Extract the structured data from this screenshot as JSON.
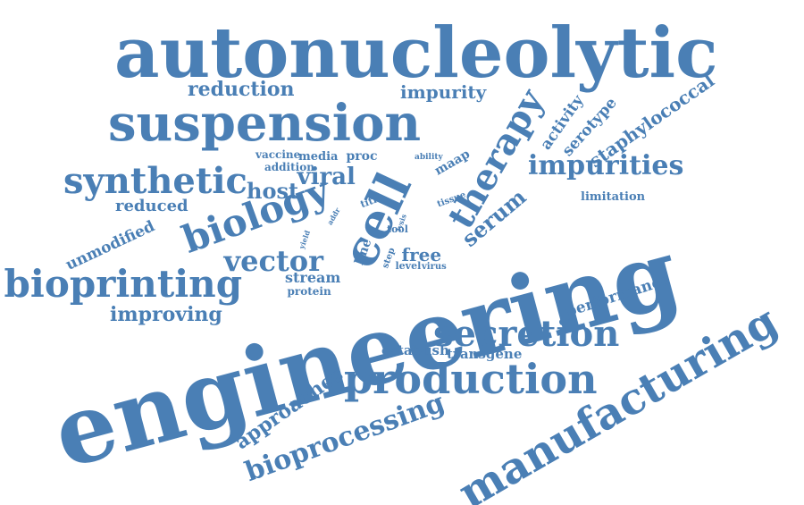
{
  "word_color": "#4a7fb5",
  "words": [
    {
      "text": "autonucleolytic"
    },
    {
      "text": "suspension"
    },
    {
      "text": "reduction"
    },
    {
      "text": "impurity"
    },
    {
      "text": "therapy"
    },
    {
      "text": "activity"
    },
    {
      "text": "serotype"
    },
    {
      "text": "staphylococcal"
    },
    {
      "text": "impurities"
    },
    {
      "text": "synthetic"
    },
    {
      "text": "vaccine"
    },
    {
      "text": "media"
    },
    {
      "text": "proc"
    },
    {
      "text": "addition"
    },
    {
      "text": "ability"
    },
    {
      "text": "maap"
    },
    {
      "text": "viral"
    },
    {
      "text": "host"
    },
    {
      "text": "cell"
    },
    {
      "text": "reduced"
    },
    {
      "text": "biology"
    },
    {
      "text": "titre"
    },
    {
      "text": "tissue"
    },
    {
      "text": "limitation"
    },
    {
      "text": "serum"
    },
    {
      "text": "addr"
    },
    {
      "text": "lysis"
    },
    {
      "text": "tool"
    },
    {
      "text": "unmodified"
    },
    {
      "text": "yield"
    },
    {
      "text": "free"
    },
    {
      "text": "vector"
    },
    {
      "text": "line"
    },
    {
      "text": "step"
    },
    {
      "text": "level"
    },
    {
      "text": "virus"
    },
    {
      "text": "engineering"
    },
    {
      "text": "bioprinting"
    },
    {
      "text": "stream"
    },
    {
      "text": "protein"
    },
    {
      "text": "performance"
    },
    {
      "text": "improving"
    },
    {
      "text": "secretion"
    },
    {
      "text": "establish"
    },
    {
      "text": "transgene"
    },
    {
      "text": "production"
    },
    {
      "text": "approaches"
    },
    {
      "text": "manufacturing"
    },
    {
      "text": "bioprocessing"
    }
  ]
}
